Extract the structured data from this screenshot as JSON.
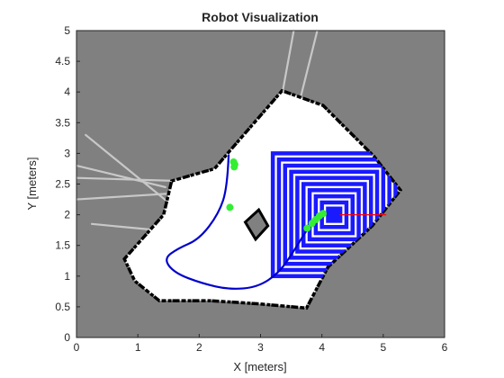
{
  "chart_data": {
    "type": "scatter",
    "title": "Robot Visualization",
    "xlabel": "X [meters]",
    "ylabel": "Y [meters]",
    "xlim": [
      0,
      6
    ],
    "ylim": [
      0,
      5
    ],
    "xticks": [
      "0",
      "1",
      "2",
      "3",
      "4",
      "5",
      "6"
    ],
    "yticks": [
      "0",
      "0.5",
      "1",
      "1.5",
      "2",
      "2.5",
      "3",
      "3.5",
      "4",
      "4.5",
      "5"
    ],
    "grid": false,
    "colors": {
      "unknown": "#808080",
      "free": "#ffffff",
      "occupied": "#000000",
      "path": "#0000cc",
      "landmarks": "#33ee33",
      "robot": "#1a1aff",
      "heading": "#ff0000",
      "rays": "#c8c8c8"
    },
    "free_space_polygon": [
      [
        0.78,
        1.28
      ],
      [
        1.42,
        2.0
      ],
      [
        1.55,
        2.55
      ],
      [
        2.25,
        2.75
      ],
      [
        2.55,
        3.1
      ],
      [
        3.35,
        4.02
      ],
      [
        4.02,
        3.78
      ],
      [
        4.85,
        2.95
      ],
      [
        5.28,
        2.4
      ],
      [
        4.82,
        1.82
      ],
      [
        4.1,
        1.15
      ],
      [
        3.75,
        0.48
      ],
      [
        2.95,
        0.55
      ],
      [
        2.18,
        0.6
      ],
      [
        1.35,
        0.6
      ],
      [
        0.95,
        0.92
      ]
    ],
    "obstacle_polygon": [
      [
        2.75,
        1.88
      ],
      [
        2.97,
        2.08
      ],
      [
        3.12,
        1.82
      ],
      [
        2.92,
        1.6
      ]
    ],
    "robot_path": [
      [
        2.48,
        2.98
      ],
      [
        2.46,
        2.45
      ],
      [
        2.32,
        2.02
      ],
      [
        2.0,
        1.6
      ],
      [
        1.65,
        1.45
      ],
      [
        1.42,
        1.28
      ],
      [
        1.6,
        1.05
      ],
      [
        2.05,
        0.88
      ],
      [
        2.5,
        0.78
      ],
      [
        2.95,
        0.82
      ],
      [
        3.3,
        1.05
      ],
      [
        3.55,
        1.42
      ],
      [
        3.75,
        1.75
      ],
      [
        3.95,
        2.0
      ]
    ],
    "landmarks": [
      [
        2.56,
        2.86
      ],
      [
        2.58,
        2.82
      ],
      [
        2.57,
        2.78
      ],
      [
        2.5,
        2.12
      ],
      [
        3.76,
        1.78
      ],
      [
        3.84,
        1.86
      ],
      [
        3.9,
        1.92
      ],
      [
        3.96,
        1.98
      ],
      [
        4.02,
        2.02
      ]
    ],
    "robot_pose": [
      4.2,
      2.0
    ],
    "heading_end": [
      5.05,
      2.0
    ],
    "sensor_rays": [
      [
        [
          1.45,
          2.45
        ],
        [
          0.0,
          2.8
        ]
      ],
      [
        [
          1.7,
          2.55
        ],
        [
          0.0,
          2.6
        ]
      ],
      [
        [
          1.5,
          2.2
        ],
        [
          0.15,
          3.3
        ]
      ],
      [
        [
          1.6,
          2.35
        ],
        [
          0.0,
          2.25
        ]
      ],
      [
        [
          1.3,
          1.75
        ],
        [
          0.25,
          1.85
        ]
      ],
      [
        [
          3.35,
          3.95
        ],
        [
          3.55,
          5.05
        ]
      ],
      [
        [
          3.65,
          3.9
        ],
        [
          3.95,
          5.1
        ]
      ]
    ],
    "lidar_rings": [
      {
        "r": 0.1
      },
      {
        "r": 0.2
      },
      {
        "r": 0.3
      },
      {
        "r": 0.4
      },
      {
        "r": 0.5
      },
      {
        "r": 0.6
      },
      {
        "r": 0.7
      },
      {
        "r": 0.8
      },
      {
        "r": 0.9
      },
      {
        "r": 1.0
      }
    ]
  }
}
